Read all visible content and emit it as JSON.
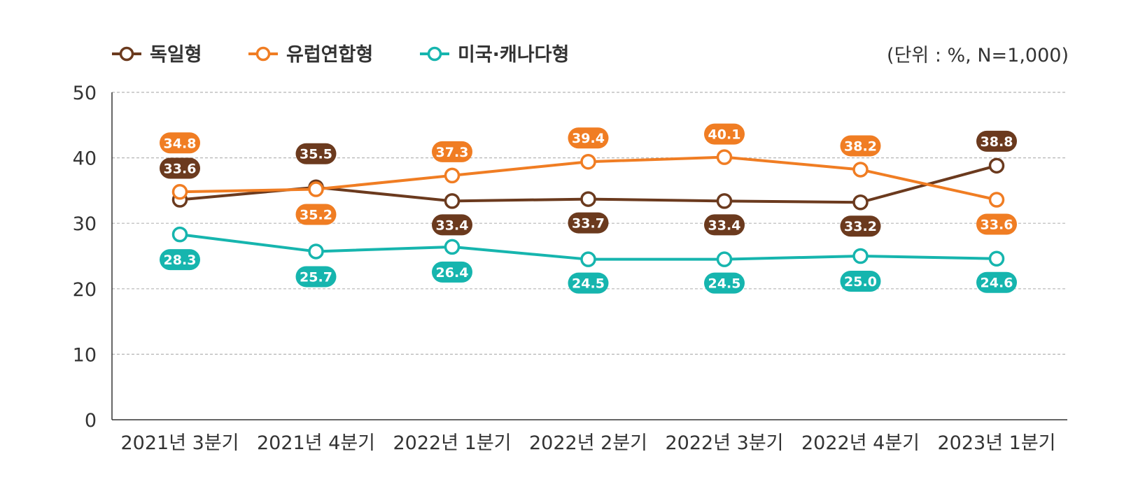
{
  "chart_data": {
    "type": "line",
    "unit_note": "(단위 : %, N=1,000)",
    "categories": [
      "2021년 3분기",
      "2021년 4분기",
      "2022년 1분기",
      "2022년 2분기",
      "2022년 3분기",
      "2022년 4분기",
      "2023년 1분기"
    ],
    "y_ticks": [
      "0",
      "10",
      "20",
      "30",
      "40",
      "50"
    ],
    "ylim": [
      0,
      50
    ],
    "grid": true,
    "legend_position": "top-left",
    "series": [
      {
        "name": "독일형",
        "color": "#6B3A1E",
        "values": [
          33.6,
          35.5,
          33.4,
          33.7,
          33.4,
          33.2,
          38.8
        ],
        "labels": [
          "33.6",
          "35.5",
          "33.4",
          "33.7",
          "33.4",
          "33.2",
          "38.8"
        ]
      },
      {
        "name": "유럽연합형",
        "color": "#F07D23",
        "values": [
          34.8,
          35.2,
          37.3,
          39.4,
          40.1,
          38.2,
          33.6
        ],
        "labels": [
          "34.8",
          "35.2",
          "37.3",
          "39.4",
          "40.1",
          "38.2",
          "33.6"
        ]
      },
      {
        "name": "미국·캐나다형",
        "color": "#16B5AE",
        "values": [
          28.3,
          25.7,
          26.4,
          24.5,
          24.5,
          25.0,
          24.6
        ],
        "labels": [
          "28.3",
          "25.7",
          "26.4",
          "24.5",
          "24.5",
          "25.0",
          "24.6"
        ]
      }
    ]
  }
}
